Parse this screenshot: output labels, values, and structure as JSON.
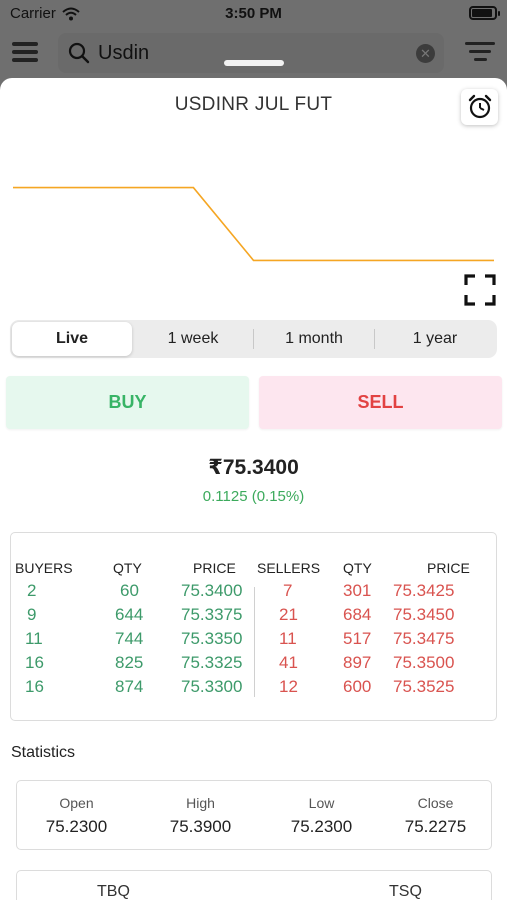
{
  "status_bar": {
    "carrier": "Carrier",
    "time": "3:50 PM"
  },
  "search": {
    "query": "Usdin"
  },
  "title": "USDINR JUL FUT",
  "chart_data": {
    "type": "line",
    "color": "#f5a623",
    "x": [
      0,
      1,
      2,
      3,
      4,
      5,
      6,
      7,
      8
    ],
    "values": [
      75.4,
      75.4,
      75.4,
      75.4,
      75.34,
      75.34,
      75.34,
      75.34,
      75.34
    ],
    "ylim": [
      75.3,
      75.44
    ]
  },
  "tabs": [
    "Live",
    "1 week",
    "1 month",
    "1 year"
  ],
  "active_tab": "Live",
  "actions": {
    "buy": "BUY",
    "sell": "SELL"
  },
  "quote": {
    "price": "₹75.3400",
    "change": "0.1125 (0.15%)"
  },
  "depth": {
    "headers": {
      "buyers": "BUYERS",
      "buy_qty": "QTY",
      "buy_price": "PRICE",
      "sellers": "SELLERS",
      "sell_qty": "QTY",
      "sell_price": "PRICE"
    },
    "rows": [
      {
        "buyers": "2",
        "buy_qty": "60",
        "buy_price": "75.3400",
        "sellers": "7",
        "sell_qty": "301",
        "sell_price": "75.3425"
      },
      {
        "buyers": "9",
        "buy_qty": "644",
        "buy_price": "75.3375",
        "sellers": "21",
        "sell_qty": "684",
        "sell_price": "75.3450"
      },
      {
        "buyers": "11",
        "buy_qty": "744",
        "buy_price": "75.3350",
        "sellers": "11",
        "sell_qty": "517",
        "sell_price": "75.3475"
      },
      {
        "buyers": "16",
        "buy_qty": "825",
        "buy_price": "75.3325",
        "sellers": "41",
        "sell_qty": "897",
        "sell_price": "75.3500"
      },
      {
        "buyers": "16",
        "buy_qty": "874",
        "buy_price": "75.3300",
        "sellers": "12",
        "sell_qty": "600",
        "sell_price": "75.3525"
      }
    ]
  },
  "statistics": {
    "label": "Statistics",
    "items": [
      {
        "label": "Open",
        "value": "75.2300"
      },
      {
        "label": "High",
        "value": "75.3900"
      },
      {
        "label": "Low",
        "value": "75.2300"
      },
      {
        "label": "Close",
        "value": "75.2275"
      }
    ]
  },
  "totals": {
    "tbq_label": "TBQ",
    "tsq_label": "TSQ"
  },
  "colors": {
    "buy": "#3d9a6a",
    "sell": "#d9534f",
    "change_up": "#3caa5c",
    "line": "#f5a623"
  }
}
